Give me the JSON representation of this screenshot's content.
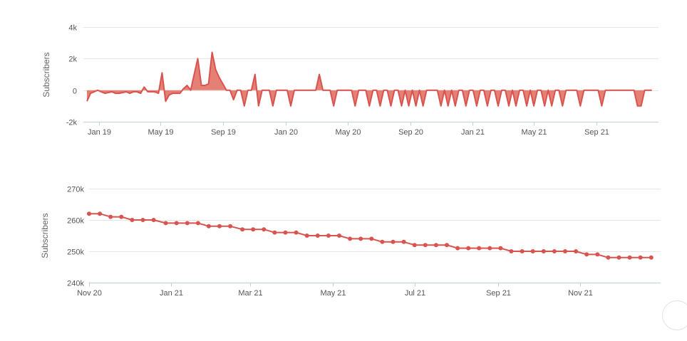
{
  "colors": {
    "series": "#d9534f",
    "fill": "#e06a5d",
    "grid": "#e6e6e6",
    "axis_line": "#c0d0e0"
  },
  "chart_data": [
    {
      "type": "area",
      "ylabel": "Subscribers",
      "ylim": [
        -2000,
        4000
      ],
      "y_ticks": [
        -2000,
        0,
        2000,
        4000
      ],
      "y_tick_labels": [
        "-2k",
        "0",
        "2k",
        "4k"
      ],
      "x_range": [
        "2018-12-01",
        "2021-12-31"
      ],
      "x_tick_labels": [
        "Jan 19",
        "May 19",
        "Sep 19",
        "Jan 20",
        "May 20",
        "Sep 20",
        "Jan 21",
        "May 21",
        "Sep 21"
      ],
      "x_tick_dates": [
        "2019-01-01",
        "2019-05-01",
        "2019-09-01",
        "2020-01-01",
        "2020-05-01",
        "2020-09-01",
        "2021-01-01",
        "2021-05-01",
        "2021-09-01"
      ],
      "grid": true,
      "series": [
        {
          "points": [
            [
              "2018-12-08",
              -700
            ],
            [
              "2018-12-15",
              -200
            ],
            [
              "2018-12-22",
              -100
            ],
            [
              "2018-12-29",
              0
            ],
            [
              "2019-01-05",
              -100
            ],
            [
              "2019-01-12",
              -200
            ],
            [
              "2019-01-19",
              -150
            ],
            [
              "2019-01-26",
              -100
            ],
            [
              "2019-02-02",
              -200
            ],
            [
              "2019-02-09",
              -200
            ],
            [
              "2019-02-16",
              -150
            ],
            [
              "2019-02-23",
              -100
            ],
            [
              "2019-03-02",
              -200
            ],
            [
              "2019-03-09",
              -100
            ],
            [
              "2019-03-16",
              -100
            ],
            [
              "2019-03-23",
              -200
            ],
            [
              "2019-03-30",
              200
            ],
            [
              "2019-04-06",
              -100
            ],
            [
              "2019-04-13",
              -100
            ],
            [
              "2019-04-20",
              -100
            ],
            [
              "2019-04-27",
              -200
            ],
            [
              "2019-05-04",
              1100
            ],
            [
              "2019-05-11",
              -700
            ],
            [
              "2019-05-18",
              -300
            ],
            [
              "2019-05-25",
              -200
            ],
            [
              "2019-06-01",
              -200
            ],
            [
              "2019-06-08",
              -200
            ],
            [
              "2019-06-15",
              100
            ],
            [
              "2019-06-22",
              300
            ],
            [
              "2019-06-29",
              0
            ],
            [
              "2019-07-06",
              1000
            ],
            [
              "2019-07-13",
              2000
            ],
            [
              "2019-07-20",
              300
            ],
            [
              "2019-07-27",
              300
            ],
            [
              "2019-08-03",
              400
            ],
            [
              "2019-08-10",
              2400
            ],
            [
              "2019-08-17",
              1300
            ],
            [
              "2019-08-24",
              800
            ],
            [
              "2019-08-31",
              400
            ],
            [
              "2019-09-07",
              0
            ],
            [
              "2019-09-14",
              0
            ],
            [
              "2019-09-21",
              -600
            ],
            [
              "2019-09-28",
              0
            ],
            [
              "2019-10-05",
              0
            ],
            [
              "2019-10-12",
              -1000
            ],
            [
              "2019-10-19",
              0
            ],
            [
              "2019-10-26",
              0
            ],
            [
              "2019-11-02",
              1000
            ],
            [
              "2019-11-09",
              -1000
            ],
            [
              "2019-11-16",
              0
            ],
            [
              "2019-11-23",
              0
            ],
            [
              "2019-11-30",
              0
            ],
            [
              "2019-12-07",
              -1000
            ],
            [
              "2019-12-14",
              0
            ],
            [
              "2019-12-21",
              0
            ],
            [
              "2019-12-28",
              0
            ],
            [
              "2020-01-04",
              0
            ],
            [
              "2020-01-11",
              -1000
            ],
            [
              "2020-01-18",
              0
            ],
            [
              "2020-01-25",
              0
            ],
            [
              "2020-02-01",
              0
            ],
            [
              "2020-02-08",
              0
            ],
            [
              "2020-02-15",
              0
            ],
            [
              "2020-02-22",
              0
            ],
            [
              "2020-02-29",
              0
            ],
            [
              "2020-03-07",
              1000
            ],
            [
              "2020-03-14",
              0
            ],
            [
              "2020-03-21",
              0
            ],
            [
              "2020-03-28",
              0
            ],
            [
              "2020-04-04",
              -1000
            ],
            [
              "2020-04-11",
              0
            ],
            [
              "2020-04-18",
              0
            ],
            [
              "2020-04-25",
              0
            ],
            [
              "2020-05-02",
              0
            ],
            [
              "2020-05-09",
              0
            ],
            [
              "2020-05-16",
              -1000
            ],
            [
              "2020-05-23",
              0
            ],
            [
              "2020-05-30",
              0
            ],
            [
              "2020-06-06",
              0
            ],
            [
              "2020-06-13",
              -1000
            ],
            [
              "2020-06-20",
              0
            ],
            [
              "2020-06-27",
              0
            ],
            [
              "2020-07-04",
              -1000
            ],
            [
              "2020-07-11",
              0
            ],
            [
              "2020-07-18",
              0
            ],
            [
              "2020-07-25",
              -1000
            ],
            [
              "2020-08-01",
              0
            ],
            [
              "2020-08-08",
              0
            ],
            [
              "2020-08-15",
              -1000
            ],
            [
              "2020-08-22",
              0
            ],
            [
              "2020-08-29",
              -1000
            ],
            [
              "2020-09-05",
              0
            ],
            [
              "2020-09-12",
              -1000
            ],
            [
              "2020-09-19",
              0
            ],
            [
              "2020-09-26",
              -1000
            ],
            [
              "2020-10-03",
              0
            ],
            [
              "2020-10-10",
              0
            ],
            [
              "2020-10-17",
              0
            ],
            [
              "2020-10-24",
              0
            ],
            [
              "2020-10-31",
              -1000
            ],
            [
              "2020-11-07",
              0
            ],
            [
              "2020-11-14",
              -1000
            ],
            [
              "2020-11-21",
              0
            ],
            [
              "2020-11-28",
              -1000
            ],
            [
              "2020-12-05",
              0
            ],
            [
              "2020-12-12",
              0
            ],
            [
              "2020-12-19",
              -1000
            ],
            [
              "2020-12-26",
              0
            ],
            [
              "2021-01-02",
              0
            ],
            [
              "2021-01-09",
              -1000
            ],
            [
              "2021-01-16",
              0
            ],
            [
              "2021-01-23",
              0
            ],
            [
              "2021-01-30",
              -1000
            ],
            [
              "2021-02-06",
              0
            ],
            [
              "2021-02-13",
              0
            ],
            [
              "2021-02-20",
              -1000
            ],
            [
              "2021-02-27",
              0
            ],
            [
              "2021-03-06",
              0
            ],
            [
              "2021-03-13",
              -1000
            ],
            [
              "2021-03-20",
              0
            ],
            [
              "2021-03-27",
              -1000
            ],
            [
              "2021-04-03",
              0
            ],
            [
              "2021-04-10",
              0
            ],
            [
              "2021-04-17",
              -1000
            ],
            [
              "2021-04-24",
              0
            ],
            [
              "2021-05-01",
              -1000
            ],
            [
              "2021-05-08",
              0
            ],
            [
              "2021-05-15",
              0
            ],
            [
              "2021-05-22",
              -1000
            ],
            [
              "2021-05-29",
              0
            ],
            [
              "2021-06-05",
              -1000
            ],
            [
              "2021-06-12",
              0
            ],
            [
              "2021-06-19",
              0
            ],
            [
              "2021-06-26",
              -1000
            ],
            [
              "2021-07-03",
              0
            ],
            [
              "2021-07-10",
              0
            ],
            [
              "2021-07-17",
              0
            ],
            [
              "2021-07-24",
              0
            ],
            [
              "2021-07-31",
              -1000
            ],
            [
              "2021-08-07",
              0
            ],
            [
              "2021-08-14",
              0
            ],
            [
              "2021-08-21",
              0
            ],
            [
              "2021-08-28",
              0
            ],
            [
              "2021-09-04",
              0
            ],
            [
              "2021-09-11",
              -1000
            ],
            [
              "2021-09-18",
              0
            ],
            [
              "2021-09-25",
              0
            ],
            [
              "2021-10-02",
              0
            ],
            [
              "2021-10-09",
              0
            ],
            [
              "2021-10-16",
              0
            ],
            [
              "2021-10-23",
              0
            ],
            [
              "2021-10-30",
              0
            ],
            [
              "2021-11-06",
              0
            ],
            [
              "2021-11-13",
              0
            ],
            [
              "2021-11-20",
              -1000
            ],
            [
              "2021-11-27",
              -1000
            ],
            [
              "2021-12-04",
              0
            ],
            [
              "2021-12-11",
              0
            ],
            [
              "2021-12-18",
              0
            ]
          ]
        }
      ]
    },
    {
      "type": "line",
      "ylabel": "Subscribers",
      "ylim": [
        240000,
        270000
      ],
      "y_ticks": [
        240000,
        250000,
        260000,
        270000
      ],
      "y_tick_labels": [
        "240k",
        "250k",
        "260k",
        "270k"
      ],
      "x_range": [
        "2020-11-01",
        "2021-12-31"
      ],
      "x_tick_labels": [
        "Nov 20",
        "Jan 21",
        "Mar 21",
        "May 21",
        "Jul 21",
        "Sep 21",
        "Nov 21"
      ],
      "x_tick_dates": [
        "2020-11-01",
        "2021-01-01",
        "2021-03-01",
        "2021-05-01",
        "2021-07-01",
        "2021-09-01",
        "2021-11-01"
      ],
      "grid": true,
      "series": [
        {
          "points": [
            [
              "2020-11-01",
              262000
            ],
            [
              "2020-11-09",
              262000
            ],
            [
              "2020-11-17",
              261000
            ],
            [
              "2020-11-25",
              261000
            ],
            [
              "2020-12-03",
              260000
            ],
            [
              "2020-12-11",
              260000
            ],
            [
              "2020-12-19",
              260000
            ],
            [
              "2020-12-28",
              259000
            ],
            [
              "2021-01-05",
              259000
            ],
            [
              "2021-01-13",
              259000
            ],
            [
              "2021-01-21",
              259000
            ],
            [
              "2021-01-29",
              258000
            ],
            [
              "2021-02-06",
              258000
            ],
            [
              "2021-02-14",
              258000
            ],
            [
              "2021-02-23",
              257000
            ],
            [
              "2021-03-03",
              257000
            ],
            [
              "2021-03-11",
              257000
            ],
            [
              "2021-03-19",
              256000
            ],
            [
              "2021-03-27",
              256000
            ],
            [
              "2021-04-04",
              256000
            ],
            [
              "2021-04-12",
              255000
            ],
            [
              "2021-04-20",
              255000
            ],
            [
              "2021-04-28",
              255000
            ],
            [
              "2021-05-06",
              255000
            ],
            [
              "2021-05-14",
              254000
            ],
            [
              "2021-05-22",
              254000
            ],
            [
              "2021-05-30",
              254000
            ],
            [
              "2021-06-07",
              253000
            ],
            [
              "2021-06-15",
              253000
            ],
            [
              "2021-06-23",
              253000
            ],
            [
              "2021-07-01",
              252000
            ],
            [
              "2021-07-09",
              252000
            ],
            [
              "2021-07-17",
              252000
            ],
            [
              "2021-07-25",
              252000
            ],
            [
              "2021-08-02",
              251000
            ],
            [
              "2021-08-10",
              251000
            ],
            [
              "2021-08-18",
              251000
            ],
            [
              "2021-08-26",
              251000
            ],
            [
              "2021-09-03",
              251000
            ],
            [
              "2021-09-11",
              250000
            ],
            [
              "2021-09-19",
              250000
            ],
            [
              "2021-09-27",
              250000
            ],
            [
              "2021-10-05",
              250000
            ],
            [
              "2021-10-13",
              250000
            ],
            [
              "2021-10-21",
              250000
            ],
            [
              "2021-10-29",
              250000
            ],
            [
              "2021-11-06",
              249000
            ],
            [
              "2021-11-14",
              249000
            ],
            [
              "2021-11-22",
              248000
            ],
            [
              "2021-11-30",
              248000
            ],
            [
              "2021-12-08",
              248000
            ],
            [
              "2021-12-16",
              248000
            ],
            [
              "2021-12-24",
              248000
            ]
          ]
        }
      ]
    }
  ]
}
